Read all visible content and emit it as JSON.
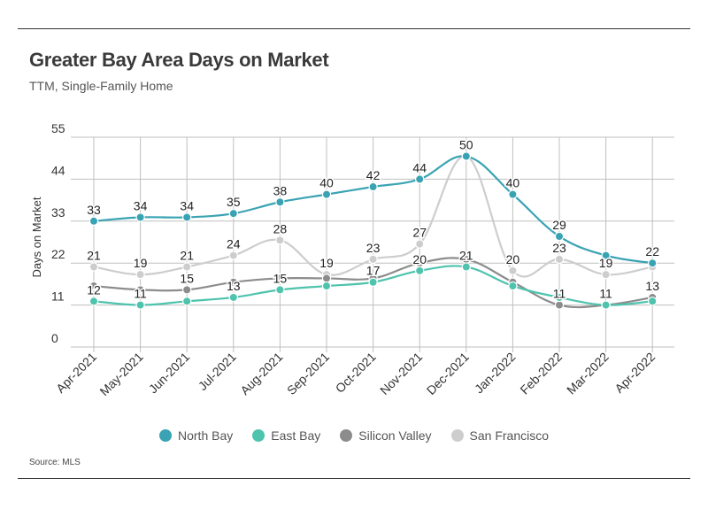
{
  "header": {
    "title": "Greater Bay Area Days on Market",
    "subtitle": "TTM, Single-Family Home"
  },
  "footer": {
    "source": "Source:  MLS"
  },
  "colors": {
    "north_bay": "#3aa3b3",
    "east_bay": "#4ec3ad",
    "silicon_valley": "#8c8c8c",
    "san_francisco": "#cdcdcd",
    "grid": "#bfbfbf",
    "axis_text": "#333333"
  },
  "chart_data": {
    "type": "line",
    "title": "Greater Bay Area Days on Market",
    "subtitle": "TTM, Single-Family Home",
    "xlabel": "",
    "ylabel": "Days on Market",
    "ylim": [
      0,
      55
    ],
    "yticks": [
      0,
      11,
      22,
      33,
      44,
      55
    ],
    "grid": true,
    "smooth": true,
    "legend_position": "bottom",
    "categories": [
      "Apr-2021",
      "May-2021",
      "Jun-2021",
      "Jul-2021",
      "Aug-2021",
      "Sep-2021",
      "Oct-2021",
      "Nov-2021",
      "Dec-2021",
      "Jan-2022",
      "Feb-2022",
      "Mar-2022",
      "Apr-2022"
    ],
    "series": [
      {
        "name": "North Bay",
        "color": "#3aa3b3",
        "values": [
          33,
          34,
          34,
          35,
          38,
          40,
          42,
          44,
          50,
          40,
          29,
          24,
          22
        ],
        "labels": [
          "33",
          "34",
          "34",
          "35",
          "38",
          "40",
          "42",
          "44",
          "50",
          "40",
          "29",
          "",
          "22"
        ]
      },
      {
        "name": "East Bay",
        "color": "#4ec3ad",
        "values": [
          12,
          11,
          12,
          13,
          15,
          16,
          17,
          20,
          21,
          16,
          13,
          11,
          12
        ],
        "labels": [
          "",
          "",
          "",
          "",
          "",
          "",
          "",
          "",
          "",
          "",
          "",
          "",
          ""
        ]
      },
      {
        "name": "Silicon Valley",
        "color": "#8c8c8c",
        "values": [
          16,
          15,
          15,
          17,
          18,
          18,
          18,
          22,
          23,
          17,
          11,
          11,
          13
        ],
        "labels": [
          "",
          "",
          "",
          "",
          "",
          "",
          "",
          "",
          "",
          "",
          "",
          "",
          "13"
        ]
      },
      {
        "name": "San Francisco",
        "color": "#cdcdcd",
        "values": [
          21,
          19,
          21,
          24,
          28,
          19,
          23,
          27,
          50,
          20,
          23,
          19,
          21
        ],
        "labels": [
          "21",
          "19",
          "21",
          "24",
          "28",
          "19",
          "23",
          "27",
          "",
          "20",
          "23",
          "19",
          ""
        ]
      }
    ],
    "extra_labels": [
      {
        "category": "Apr-2021",
        "value": 12,
        "text": "12"
      },
      {
        "category": "May-2021",
        "value": 11,
        "text": "11"
      },
      {
        "category": "Jun-2021",
        "value": 15,
        "text": "15"
      },
      {
        "category": "Jul-2021",
        "value": 13,
        "text": "13"
      },
      {
        "category": "Aug-2021",
        "value": 15,
        "text": "15"
      },
      {
        "category": "Sep-2021",
        "value": 19,
        "text": "19"
      },
      {
        "category": "Oct-2021",
        "value": 17,
        "text": "17"
      },
      {
        "category": "Nov-2021",
        "value": 20,
        "text": "20"
      },
      {
        "category": "Dec-2021",
        "value": 21,
        "text": "21"
      },
      {
        "category": "Feb-2022",
        "value": 11,
        "text": "11"
      },
      {
        "category": "Mar-2022",
        "value": 11,
        "text": "11"
      }
    ]
  }
}
